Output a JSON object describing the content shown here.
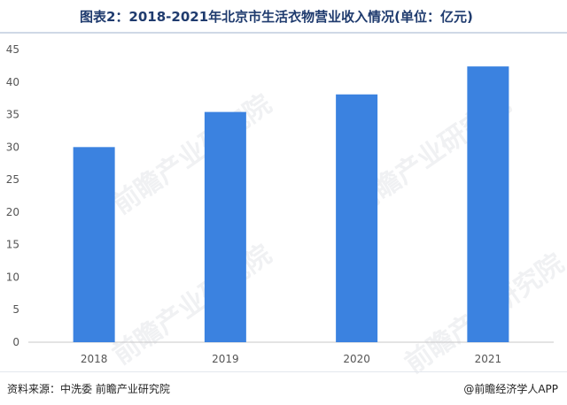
{
  "header": {
    "title": "图表2：2018-2021年北京市生活衣物营业收入情况(单位：亿元)"
  },
  "footer": {
    "source": "资料来源：中洗委 前瞻产业研究院",
    "credit": "@前瞻经济学人APP"
  },
  "watermark": {
    "text": "前瞻产业研究院"
  },
  "colors": {
    "bar": "#3b82e0",
    "axis": "#c8c8c8",
    "text": "#555555"
  },
  "chart_data": {
    "type": "bar",
    "title": "图表2：2018-2021年北京市生活衣物营业收入情况(单位：亿元)",
    "categories": [
      "2018",
      "2019",
      "2020",
      "2021"
    ],
    "values": [
      30,
      35.4,
      38.1,
      42.4
    ],
    "ylim": [
      0,
      45
    ],
    "yticks": [
      0,
      5,
      10,
      15,
      20,
      25,
      30,
      35,
      40,
      45
    ],
    "xlabel": "",
    "ylabel": "",
    "grid": false,
    "legend": "none"
  }
}
